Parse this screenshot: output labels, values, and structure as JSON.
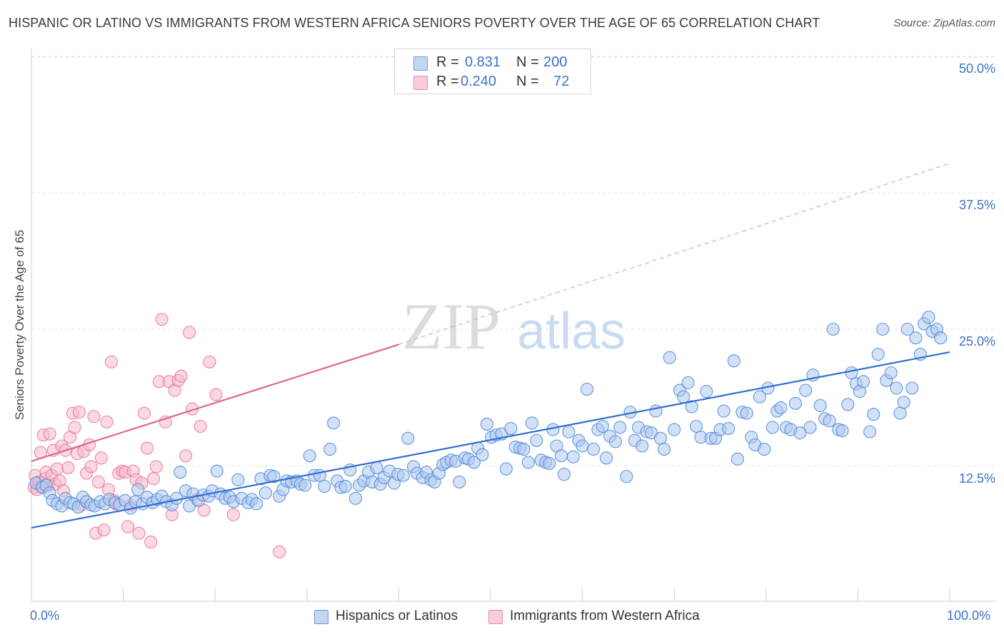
{
  "title": "HISPANIC OR LATINO VS IMMIGRANTS FROM WESTERN AFRICA SENIORS POVERTY OVER THE AGE OF 65 CORRELATION CHART",
  "source": "Source: ZipAtlas.com",
  "watermark": {
    "zip": "ZIP",
    "atlas": "atlas"
  },
  "legend_top": {
    "rows": [
      {
        "r_label": "R =",
        "r_value": "0.831",
        "n_label": "N =",
        "n_value": "200",
        "color": "#aec8ee"
      },
      {
        "r_label": "R =",
        "r_value": "0.240",
        "n_label": "N =",
        "n_value": "72",
        "color": "#f6b9cc"
      }
    ]
  },
  "legend_bottom": [
    {
      "label": "Hispanics or Latinos",
      "color": "#aec8ee"
    },
    {
      "label": "Immigrants from Western Africa",
      "color": "#f6b9cc"
    }
  ],
  "chart_data": {
    "type": "scatter",
    "title": "HISPANIC OR LATINO VS IMMIGRANTS FROM WESTERN AFRICA SENIORS POVERTY OVER THE AGE OF 65 CORRELATION CHART",
    "xlabel": "",
    "ylabel": "Seniors Poverty Over the Age of 65",
    "xlim": [
      0,
      100
    ],
    "ylim": [
      0,
      52
    ],
    "x_tick_labels": [
      "0.0%",
      "100.0%"
    ],
    "y_ticks": [
      12.5,
      25.0,
      37.5,
      50.0
    ],
    "y_tick_labels": [
      "12.5%",
      "25.0%",
      "37.5%",
      "50.0%"
    ],
    "grid": true,
    "legend": "top-center",
    "series": [
      {
        "name": "Hispanics or Latinos",
        "color": "#4a86d8",
        "fill": "#aec8ee",
        "trend": {
          "x": [
            0,
            100
          ],
          "y": [
            6.8,
            22.9
          ],
          "dashed_extension": false
        },
        "points": [
          [
            0.5,
            10.9
          ],
          [
            1.2,
            10.5
          ],
          [
            1.6,
            10.7
          ],
          [
            2.0,
            10.0
          ],
          [
            2.3,
            9.3
          ],
          [
            2.8,
            9.0
          ],
          [
            3.3,
            8.8
          ],
          [
            3.7,
            9.5
          ],
          [
            4.2,
            9.1
          ],
          [
            4.6,
            9.0
          ],
          [
            5.1,
            8.7
          ],
          [
            5.6,
            9.6
          ],
          [
            6.0,
            9.2
          ],
          [
            6.5,
            8.9
          ],
          [
            6.9,
            8.8
          ],
          [
            7.5,
            9.2
          ],
          [
            8.0,
            9.0
          ],
          [
            8.5,
            9.4
          ],
          [
            9.1,
            9.1
          ],
          [
            9.6,
            8.9
          ],
          [
            10.2,
            9.3
          ],
          [
            10.8,
            8.6
          ],
          [
            11.3,
            9.2
          ],
          [
            11.6,
            10.3
          ],
          [
            12.1,
            9.0
          ],
          [
            12.6,
            9.6
          ],
          [
            13.2,
            9.1
          ],
          [
            13.7,
            9.4
          ],
          [
            14.2,
            9.7
          ],
          [
            14.7,
            9.2
          ],
          [
            15.3,
            8.9
          ],
          [
            15.8,
            9.5
          ],
          [
            16.2,
            11.9
          ],
          [
            16.8,
            10.2
          ],
          [
            17.2,
            8.8
          ],
          [
            17.6,
            9.9
          ],
          [
            18.2,
            9.3
          ],
          [
            18.7,
            9.8
          ],
          [
            19.3,
            9.7
          ],
          [
            19.7,
            10.2
          ],
          [
            20.2,
            12.0
          ],
          [
            20.6,
            9.9
          ],
          [
            21.1,
            9.5
          ],
          [
            21.6,
            9.6
          ],
          [
            22.0,
            9.2
          ],
          [
            22.5,
            11.2
          ],
          [
            22.9,
            9.5
          ],
          [
            23.6,
            9.1
          ],
          [
            24.0,
            9.4
          ],
          [
            24.5,
            9.0
          ],
          [
            25.0,
            11.3
          ],
          [
            25.5,
            10.0
          ],
          [
            26.0,
            11.6
          ],
          [
            26.4,
            11.5
          ],
          [
            27.0,
            9.7
          ],
          [
            27.4,
            10.3
          ],
          [
            27.8,
            11.1
          ],
          [
            28.3,
            11.0
          ],
          [
            28.9,
            11.1
          ],
          [
            29.3,
            10.8
          ],
          [
            29.8,
            10.7
          ],
          [
            30.3,
            13.4
          ],
          [
            30.8,
            11.6
          ],
          [
            31.4,
            11.6
          ],
          [
            31.9,
            10.6
          ],
          [
            32.5,
            14.0
          ],
          [
            32.9,
            16.4
          ],
          [
            33.3,
            11.1
          ],
          [
            33.7,
            10.5
          ],
          [
            34.2,
            10.6
          ],
          [
            34.7,
            12.1
          ],
          [
            35.3,
            9.5
          ],
          [
            35.7,
            10.7
          ],
          [
            36.2,
            11.1
          ],
          [
            36.7,
            11.9
          ],
          [
            37.1,
            11.0
          ],
          [
            37.6,
            12.3
          ],
          [
            38.0,
            10.8
          ],
          [
            38.4,
            11.4
          ],
          [
            39.0,
            12.0
          ],
          [
            39.5,
            10.9
          ],
          [
            39.9,
            11.7
          ],
          [
            40.5,
            11.6
          ],
          [
            41.0,
            15.0
          ],
          [
            41.6,
            12.4
          ],
          [
            42.0,
            11.8
          ],
          [
            42.6,
            11.4
          ],
          [
            43.0,
            11.9
          ],
          [
            43.5,
            11.2
          ],
          [
            43.9,
            11.0
          ],
          [
            44.4,
            11.8
          ],
          [
            44.8,
            12.6
          ],
          [
            45.2,
            12.8
          ],
          [
            45.7,
            13.0
          ],
          [
            46.2,
            12.9
          ],
          [
            46.6,
            11.0
          ],
          [
            47.2,
            13.2
          ],
          [
            47.6,
            13.1
          ],
          [
            48.2,
            12.8
          ],
          [
            48.6,
            14.1
          ],
          [
            49.1,
            13.5
          ],
          [
            49.6,
            16.3
          ],
          [
            50.1,
            15.1
          ],
          [
            50.6,
            15.3
          ],
          [
            51.2,
            15.4
          ],
          [
            51.7,
            12.2
          ],
          [
            52.2,
            15.9
          ],
          [
            52.7,
            14.2
          ],
          [
            53.2,
            14.1
          ],
          [
            53.6,
            14.0
          ],
          [
            54.1,
            12.8
          ],
          [
            54.5,
            16.4
          ],
          [
            55.0,
            14.8
          ],
          [
            55.5,
            13.0
          ],
          [
            56.0,
            12.8
          ],
          [
            56.4,
            12.7
          ],
          [
            56.8,
            15.8
          ],
          [
            57.2,
            14.3
          ],
          [
            57.7,
            13.4
          ],
          [
            58.0,
            11.7
          ],
          [
            58.5,
            15.6
          ],
          [
            59.0,
            13.3
          ],
          [
            59.6,
            14.8
          ],
          [
            60.0,
            14.3
          ],
          [
            60.5,
            19.5
          ],
          [
            61.2,
            14.0
          ],
          [
            61.7,
            15.8
          ],
          [
            62.2,
            16.1
          ],
          [
            62.6,
            13.2
          ],
          [
            63.0,
            15.2
          ],
          [
            63.6,
            14.7
          ],
          [
            64.1,
            16.0
          ],
          [
            64.8,
            11.5
          ],
          [
            65.2,
            17.4
          ],
          [
            65.7,
            14.8
          ],
          [
            66.1,
            16.0
          ],
          [
            66.5,
            14.3
          ],
          [
            67.0,
            15.6
          ],
          [
            67.5,
            15.5
          ],
          [
            68.0,
            17.5
          ],
          [
            68.5,
            15.0
          ],
          [
            68.9,
            14.0
          ],
          [
            69.5,
            22.4
          ],
          [
            70.0,
            15.8
          ],
          [
            70.6,
            19.4
          ],
          [
            71.0,
            18.8
          ],
          [
            71.5,
            20.1
          ],
          [
            71.9,
            17.9
          ],
          [
            72.4,
            16.1
          ],
          [
            72.9,
            15.1
          ],
          [
            73.5,
            19.3
          ],
          [
            74.0,
            15.0
          ],
          [
            74.5,
            15.0
          ],
          [
            75.0,
            15.8
          ],
          [
            75.4,
            17.5
          ],
          [
            75.9,
            15.9
          ],
          [
            76.5,
            22.1
          ],
          [
            76.9,
            13.1
          ],
          [
            77.4,
            17.4
          ],
          [
            77.9,
            17.3
          ],
          [
            78.4,
            15.1
          ],
          [
            78.8,
            14.4
          ],
          [
            79.3,
            18.8
          ],
          [
            79.8,
            14.0
          ],
          [
            80.2,
            19.6
          ],
          [
            80.7,
            16.0
          ],
          [
            81.2,
            17.5
          ],
          [
            81.6,
            17.8
          ],
          [
            82.2,
            16.0
          ],
          [
            82.7,
            15.8
          ],
          [
            83.2,
            18.2
          ],
          [
            83.7,
            15.5
          ],
          [
            84.3,
            19.4
          ],
          [
            84.8,
            16.0
          ],
          [
            85.1,
            20.8
          ],
          [
            85.9,
            18.0
          ],
          [
            86.4,
            16.8
          ],
          [
            86.9,
            16.6
          ],
          [
            87.3,
            25.0
          ],
          [
            87.9,
            15.8
          ],
          [
            88.3,
            15.7
          ],
          [
            88.9,
            18.1
          ],
          [
            89.3,
            21.0
          ],
          [
            89.8,
            20.0
          ],
          [
            90.2,
            19.3
          ],
          [
            90.6,
            20.2
          ],
          [
            91.3,
            15.6
          ],
          [
            91.7,
            17.2
          ],
          [
            92.2,
            22.7
          ],
          [
            92.7,
            25.0
          ],
          [
            93.1,
            20.3
          ],
          [
            93.6,
            21.0
          ],
          [
            94.2,
            19.6
          ],
          [
            94.6,
            17.3
          ],
          [
            95.0,
            18.3
          ],
          [
            95.4,
            25.0
          ],
          [
            95.9,
            19.6
          ],
          [
            96.3,
            24.2
          ],
          [
            96.8,
            22.7
          ],
          [
            97.2,
            25.5
          ],
          [
            97.7,
            26.1
          ],
          [
            98.1,
            24.8
          ],
          [
            98.6,
            25.0
          ],
          [
            99.0,
            24.2
          ]
        ]
      },
      {
        "name": "Immigrants from Western Africa",
        "color": "#e8729a",
        "fill": "#f6b9cc",
        "trend": {
          "x": [
            0,
            40
          ],
          "y": [
            12.9,
            23.6
          ],
          "dashed_extension_to": [
            100,
            40.2
          ]
        },
        "points": [
          [
            0.3,
            10.5
          ],
          [
            0.4,
            11.6
          ],
          [
            0.6,
            10.3
          ],
          [
            0.8,
            11.0
          ],
          [
            1.0,
            13.7
          ],
          [
            1.1,
            10.6
          ],
          [
            1.3,
            15.3
          ],
          [
            1.5,
            11.3
          ],
          [
            1.6,
            11.9
          ],
          [
            1.8,
            10.7
          ],
          [
            2.0,
            15.4
          ],
          [
            2.2,
            11.6
          ],
          [
            2.4,
            13.9
          ],
          [
            2.6,
            10.8
          ],
          [
            2.8,
            12.2
          ],
          [
            3.1,
            11.1
          ],
          [
            3.3,
            14.3
          ],
          [
            3.5,
            10.2
          ],
          [
            3.7,
            13.9
          ],
          [
            4.0,
            12.3
          ],
          [
            4.2,
            15.1
          ],
          [
            4.5,
            17.3
          ],
          [
            4.7,
            16.0
          ],
          [
            5.0,
            13.6
          ],
          [
            5.2,
            17.4
          ],
          [
            5.5,
            8.9
          ],
          [
            5.7,
            13.8
          ],
          [
            6.0,
            11.8
          ],
          [
            6.3,
            14.4
          ],
          [
            6.5,
            12.4
          ],
          [
            6.8,
            17.0
          ],
          [
            7.0,
            6.3
          ],
          [
            7.3,
            11.0
          ],
          [
            7.6,
            13.2
          ],
          [
            7.9,
            6.6
          ],
          [
            8.2,
            16.5
          ],
          [
            8.4,
            10.3
          ],
          [
            8.7,
            22.0
          ],
          [
            9.0,
            9.3
          ],
          [
            9.2,
            9.0
          ],
          [
            9.5,
            11.8
          ],
          [
            9.9,
            12.0
          ],
          [
            10.2,
            11.9
          ],
          [
            10.5,
            6.9
          ],
          [
            10.8,
            8.9
          ],
          [
            11.1,
            12.0
          ],
          [
            11.4,
            11.2
          ],
          [
            11.7,
            6.3
          ],
          [
            12.0,
            10.9
          ],
          [
            12.3,
            17.3
          ],
          [
            12.6,
            14.1
          ],
          [
            13.0,
            5.5
          ],
          [
            13.3,
            11.3
          ],
          [
            13.6,
            12.4
          ],
          [
            13.9,
            20.2
          ],
          [
            14.2,
            25.9
          ],
          [
            14.6,
            16.5
          ],
          [
            15.0,
            20.2
          ],
          [
            15.3,
            8.0
          ],
          [
            15.6,
            19.4
          ],
          [
            16.0,
            20.3
          ],
          [
            16.3,
            20.7
          ],
          [
            16.8,
            13.4
          ],
          [
            17.2,
            24.7
          ],
          [
            17.5,
            17.7
          ],
          [
            18.0,
            9.4
          ],
          [
            18.4,
            16.1
          ],
          [
            18.8,
            8.4
          ],
          [
            19.4,
            22.0
          ],
          [
            20.1,
            19.0
          ],
          [
            22.0,
            8.0
          ],
          [
            27.0,
            4.6
          ]
        ]
      }
    ]
  }
}
